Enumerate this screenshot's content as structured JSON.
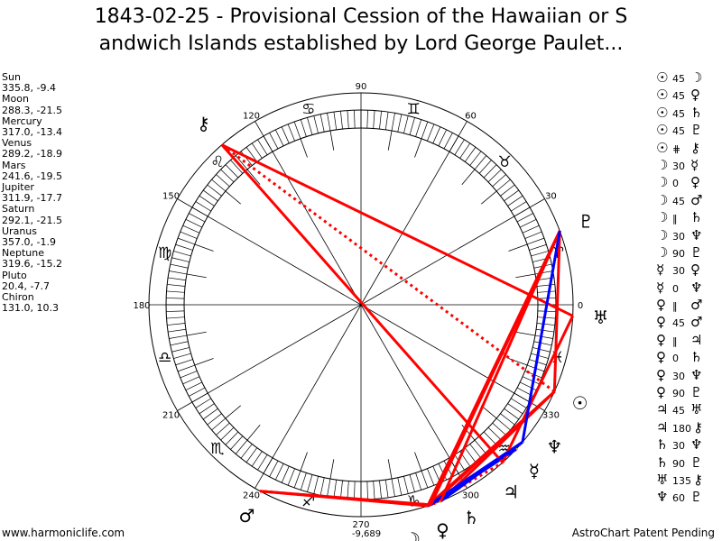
{
  "title": "1843-02-25 - Provisional Cession of the Hawaiian or Sandwich Islands established by Lord George Paulet...",
  "title_lines": [
    "1843-02-25 - Provisional Cession of the Hawaiian or S",
    "andwich Islands established by Lord George Paulet..."
  ],
  "planets": [
    {
      "name": "Sun",
      "glyph": "☉",
      "position": "335.8, -9.4"
    },
    {
      "name": "Moon",
      "glyph": "☽",
      "position": "288.3, -21.5"
    },
    {
      "name": "Mercury",
      "glyph": "☿",
      "position": "317.0, -13.4"
    },
    {
      "name": "Venus",
      "glyph": "♀",
      "position": "289.2, -18.9"
    },
    {
      "name": "Mars",
      "glyph": "♂",
      "position": "241.6, -19.5"
    },
    {
      "name": "Jupiter",
      "glyph": "♃",
      "position": "311.9, -17.7"
    },
    {
      "name": "Saturn",
      "glyph": "♄",
      "position": "292.1, -21.5"
    },
    {
      "name": "Uranus",
      "glyph": "♅",
      "position": "357.0, -1.9"
    },
    {
      "name": "Neptune",
      "glyph": "♆",
      "position": "319.6, -15.2"
    },
    {
      "name": "Pluto",
      "glyph": "♇",
      "position": "20.4, -7.7"
    },
    {
      "name": "Chiron",
      "glyph": "⚷",
      "position": "131.0, 10.3"
    }
  ],
  "aspects": [
    {
      "a": "Sun",
      "type": "45",
      "b": "Moon"
    },
    {
      "a": "Sun",
      "type": "45",
      "b": "Venus"
    },
    {
      "a": "Sun",
      "type": "45",
      "b": "Saturn"
    },
    {
      "a": "Sun",
      "type": "45",
      "b": "Pluto"
    },
    {
      "a": "Sun",
      "type": "⋕",
      "b": "Chiron"
    },
    {
      "a": "Moon",
      "type": "30",
      "b": "Mercury"
    },
    {
      "a": "Moon",
      "type": "0",
      "b": "Venus"
    },
    {
      "a": "Moon",
      "type": "45",
      "b": "Mars"
    },
    {
      "a": "Moon",
      "type": "‖",
      "b": "Saturn"
    },
    {
      "a": "Moon",
      "type": "30",
      "b": "Neptune"
    },
    {
      "a": "Moon",
      "type": "90",
      "b": "Pluto"
    },
    {
      "a": "Mercury",
      "type": "30",
      "b": "Venus"
    },
    {
      "a": "Mercury",
      "type": "0",
      "b": "Neptune"
    },
    {
      "a": "Venus",
      "type": "‖",
      "b": "Mars"
    },
    {
      "a": "Venus",
      "type": "45",
      "b": "Mars"
    },
    {
      "a": "Venus",
      "type": "‖",
      "b": "Jupiter"
    },
    {
      "a": "Venus",
      "type": "0",
      "b": "Saturn"
    },
    {
      "a": "Venus",
      "type": "30",
      "b": "Neptune"
    },
    {
      "a": "Venus",
      "type": "90",
      "b": "Pluto"
    },
    {
      "a": "Jupiter",
      "type": "45",
      "b": "Uranus"
    },
    {
      "a": "Jupiter",
      "type": "180",
      "b": "Chiron"
    },
    {
      "a": "Saturn",
      "type": "30",
      "b": "Neptune"
    },
    {
      "a": "Saturn",
      "type": "90",
      "b": "Pluto"
    },
    {
      "a": "Uranus",
      "type": "135",
      "b": "Chiron"
    },
    {
      "a": "Neptune",
      "type": "60",
      "b": "Pluto"
    }
  ],
  "signs": [
    "♈",
    "♉",
    "♊",
    "♋",
    "♌",
    "♍",
    "♎",
    "♏",
    "♐",
    "♑",
    "♒",
    "♓"
  ],
  "degree_labels": [
    "0",
    "30",
    "60",
    "90",
    "120",
    "150",
    "180",
    "210",
    "240",
    "270",
    "300",
    "330"
  ],
  "bottom_value": "-9,689",
  "colors": {
    "hard": "#ff0000",
    "soft": "#0000ff",
    "conj": "#daa520",
    "ring": "#000000"
  },
  "footer": {
    "left": "www.harmoniclife.com",
    "right": "AstroChart Patent Pending"
  }
}
